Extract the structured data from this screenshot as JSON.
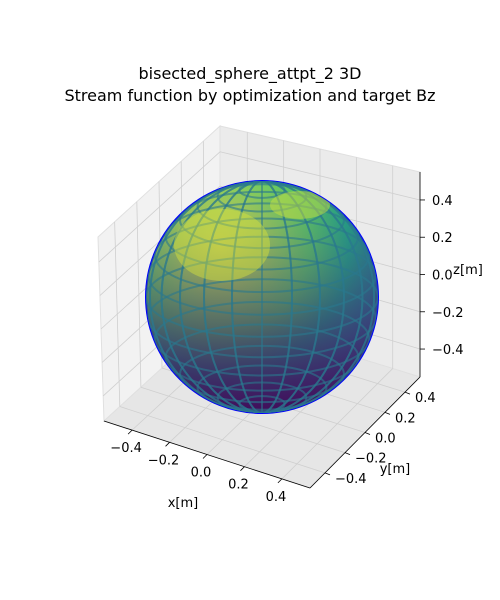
{
  "chart_data": {
    "type": "surface3d",
    "title_line1": "bisected_sphere_attpt_2 3D",
    "title_line2": "Stream function by optimization and target Bz",
    "xlabel": "x[m]",
    "ylabel": "y[m]",
    "zlabel": "z[m]",
    "xlim": [
      -0.55,
      0.55
    ],
    "ylim": [
      -0.55,
      0.55
    ],
    "zlim": [
      -0.55,
      0.55
    ],
    "x_ticks": [
      "−0.4",
      "−0.2",
      "0.0",
      "0.2",
      "0.4"
    ],
    "y_ticks": [
      "−0.4",
      "−0.2",
      "0.0",
      "0.2",
      "0.4"
    ],
    "z_ticks": [
      "−0.4",
      "−0.2",
      "0.0",
      "0.2",
      "0.4"
    ],
    "sphere_radius": 0.5,
    "colormap": [
      "#440154",
      "#3b528b",
      "#21918c",
      "#5ec962",
      "#fde725"
    ],
    "edge_color": "#0000ff",
    "pane_color": "#f2f2f2",
    "grid": true
  }
}
